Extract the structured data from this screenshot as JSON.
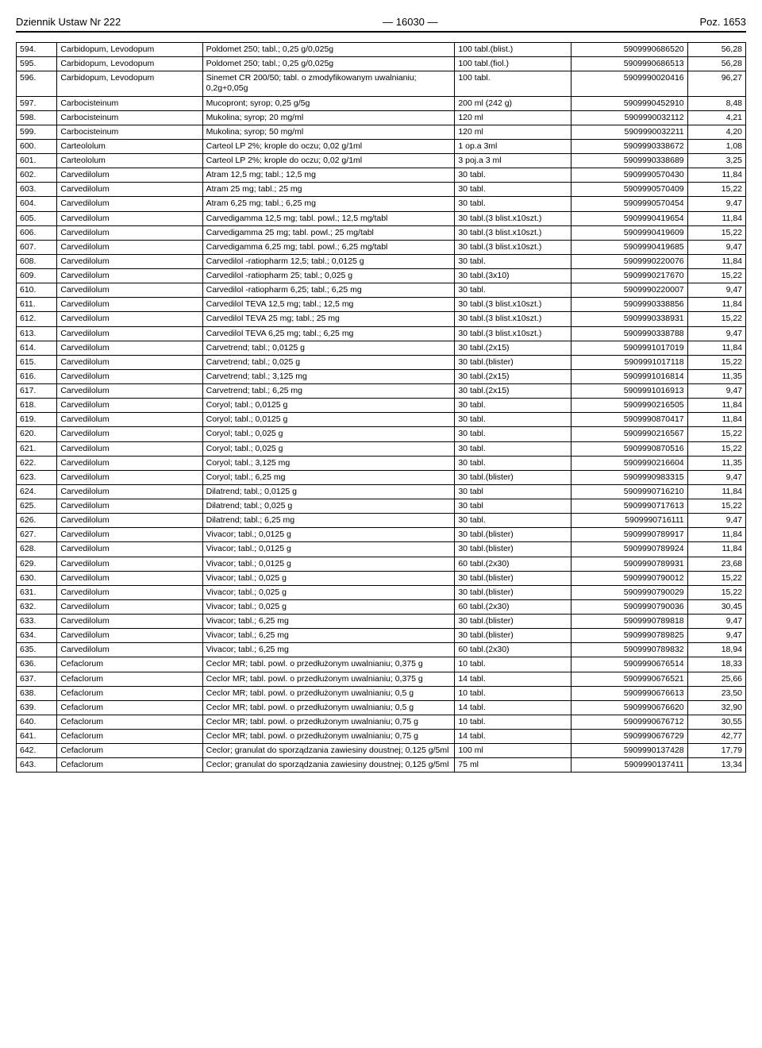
{
  "header": {
    "left": "Dziennik Ustaw Nr 222",
    "center": "— 16030 —",
    "right": "Poz. 1653"
  },
  "rows": [
    {
      "n": "594.",
      "ing": "Carbidopum, Levodopum",
      "prod": "Poldomet 250; tabl.; 0,25 g/0,025g",
      "pack": "100 tabl.(blist.)",
      "ean": "5909990686520",
      "price": "56,28"
    },
    {
      "n": "595.",
      "ing": "Carbidopum, Levodopum",
      "prod": "Poldomet 250; tabl.; 0,25 g/0,025g",
      "pack": "100 tabl.(fiol.)",
      "ean": "5909990686513",
      "price": "56,28"
    },
    {
      "n": "596.",
      "ing": "Carbidopum, Levodopum",
      "prod": "Sinemet CR 200/50; tabl. o zmodyfikowanym uwalnianiu; 0,2g+0,05g",
      "pack": "100 tabl.",
      "ean": "5909990020416",
      "price": "96,27"
    },
    {
      "n": "597.",
      "ing": "Carbocisteinum",
      "prod": "Mucopront; syrop; 0,25 g/5g",
      "pack": "200 ml (242 g)",
      "ean": "5909990452910",
      "price": "8,48"
    },
    {
      "n": "598.",
      "ing": "Carbocisteinum",
      "prod": "Mukolina; syrop; 20 mg/ml",
      "pack": "120 ml",
      "ean": "5909990032112",
      "price": "4,21"
    },
    {
      "n": "599.",
      "ing": "Carbocisteinum",
      "prod": "Mukolina; syrop; 50 mg/ml",
      "pack": "120 ml",
      "ean": "5909990032211",
      "price": "4,20"
    },
    {
      "n": "600.",
      "ing": "Carteololum",
      "prod": "Carteol LP 2%; krople do oczu; 0,02 g/1ml",
      "pack": "1 op.a 3ml",
      "ean": "5909990338672",
      "price": "1,08"
    },
    {
      "n": "601.",
      "ing": "Carteololum",
      "prod": "Carteol LP 2%; krople do oczu; 0,02 g/1ml",
      "pack": "3 poj.a 3 ml",
      "ean": "5909990338689",
      "price": "3,25"
    },
    {
      "n": "602.",
      "ing": "Carvedilolum",
      "prod": "Atram 12,5 mg; tabl.; 12,5 mg",
      "pack": "30 tabl.",
      "ean": "5909990570430",
      "price": "11,84"
    },
    {
      "n": "603.",
      "ing": "Carvedilolum",
      "prod": "Atram 25 mg; tabl.; 25 mg",
      "pack": "30 tabl.",
      "ean": "5909990570409",
      "price": "15,22"
    },
    {
      "n": "604.",
      "ing": "Carvedilolum",
      "prod": "Atram 6,25 mg; tabl.; 6,25 mg",
      "pack": "30 tabl.",
      "ean": "5909990570454",
      "price": "9,47"
    },
    {
      "n": "605.",
      "ing": "Carvedilolum",
      "prod": "Carvedigamma 12,5 mg; tabl. powl.; 12,5 mg/tabl",
      "pack": "30 tabl.(3 blist.x10szt.)",
      "ean": "5909990419654",
      "price": "11,84"
    },
    {
      "n": "606.",
      "ing": "Carvedilolum",
      "prod": "Carvedigamma 25 mg; tabl. powl.; 25 mg/tabl",
      "pack": "30 tabl.(3 blist.x10szt.)",
      "ean": "5909990419609",
      "price": "15,22"
    },
    {
      "n": "607.",
      "ing": "Carvedilolum",
      "prod": "Carvedigamma 6,25 mg; tabl. powl.; 6,25 mg/tabl",
      "pack": "30 tabl.(3 blist.x10szt.)",
      "ean": "5909990419685",
      "price": "9,47"
    },
    {
      "n": "608.",
      "ing": "Carvedilolum",
      "prod": "Carvedilol -ratiopharm 12,5; tabl.; 0,0125 g",
      "pack": "30 tabl.",
      "ean": "5909990220076",
      "price": "11,84"
    },
    {
      "n": "609.",
      "ing": "Carvedilolum",
      "prod": "Carvedilol -ratiopharm 25; tabl.; 0,025 g",
      "pack": "30 tabl.(3x10)",
      "ean": "5909990217670",
      "price": "15,22"
    },
    {
      "n": "610.",
      "ing": "Carvedilolum",
      "prod": "Carvedilol -ratiopharm 6,25; tabl.; 6,25 mg",
      "pack": "30 tabl.",
      "ean": "5909990220007",
      "price": "9,47"
    },
    {
      "n": "611.",
      "ing": "Carvedilolum",
      "prod": "Carvedilol TEVA 12,5 mg; tabl.; 12,5 mg",
      "pack": "30 tabl.(3 blist.x10szt.)",
      "ean": "5909990338856",
      "price": "11,84"
    },
    {
      "n": "612.",
      "ing": "Carvedilolum",
      "prod": "Carvedilol TEVA 25 mg; tabl.; 25 mg",
      "pack": "30 tabl.(3 blist.x10szt.)",
      "ean": "5909990338931",
      "price": "15,22"
    },
    {
      "n": "613.",
      "ing": "Carvedilolum",
      "prod": "Carvedilol TEVA 6,25 mg; tabl.; 6,25 mg",
      "pack": "30 tabl.(3 blist.x10szt.)",
      "ean": "5909990338788",
      "price": "9,47"
    },
    {
      "n": "614.",
      "ing": "Carvedilolum",
      "prod": "Carvetrend; tabl.; 0,0125 g",
      "pack": "30 tabl.(2x15)",
      "ean": "5909991017019",
      "price": "11,84"
    },
    {
      "n": "615.",
      "ing": "Carvedilolum",
      "prod": "Carvetrend; tabl.; 0,025 g",
      "pack": "30 tabl.(blister)",
      "ean": "5909991017118",
      "price": "15,22"
    },
    {
      "n": "616.",
      "ing": "Carvedilolum",
      "prod": "Carvetrend; tabl.; 3,125 mg",
      "pack": "30 tabl.(2x15)",
      "ean": "5909991016814",
      "price": "11,35"
    },
    {
      "n": "617.",
      "ing": "Carvedilolum",
      "prod": "Carvetrend; tabl.; 6,25 mg",
      "pack": "30 tabl.(2x15)",
      "ean": "5909991016913",
      "price": "9,47"
    },
    {
      "n": "618.",
      "ing": "Carvedilolum",
      "prod": "Coryol; tabl.; 0,0125 g",
      "pack": "30 tabl.",
      "ean": "5909990216505",
      "price": "11,84"
    },
    {
      "n": "619.",
      "ing": "Carvedilolum",
      "prod": "Coryol; tabl.; 0,0125 g",
      "pack": "30 tabl.",
      "ean": "5909990870417",
      "price": "11,84"
    },
    {
      "n": "620.",
      "ing": "Carvedilolum",
      "prod": "Coryol; tabl.; 0,025 g",
      "pack": "30 tabl.",
      "ean": "5909990216567",
      "price": "15,22"
    },
    {
      "n": "621.",
      "ing": "Carvedilolum",
      "prod": "Coryol; tabl.; 0,025 g",
      "pack": "30 tabl.",
      "ean": "5909990870516",
      "price": "15,22"
    },
    {
      "n": "622.",
      "ing": "Carvedilolum",
      "prod": "Coryol; tabl.; 3,125 mg",
      "pack": "30 tabl.",
      "ean": "5909990216604",
      "price": "11,35"
    },
    {
      "n": "623.",
      "ing": "Carvedilolum",
      "prod": "Coryol; tabl.; 6,25 mg",
      "pack": "30 tabl.(blister)",
      "ean": "5909990983315",
      "price": "9,47"
    },
    {
      "n": "624.",
      "ing": "Carvedilolum",
      "prod": "Dilatrend; tabl.; 0,0125 g",
      "pack": "30 tabl",
      "ean": "5909990716210",
      "price": "11,84"
    },
    {
      "n": "625.",
      "ing": "Carvedilolum",
      "prod": "Dilatrend; tabl.; 0,025 g",
      "pack": "30 tabl",
      "ean": "5909990717613",
      "price": "15,22"
    },
    {
      "n": "626.",
      "ing": "Carvedilolum",
      "prod": "Dilatrend; tabl.; 6,25 mg",
      "pack": "30 tabl.",
      "ean": "5909990716111",
      "price": "9,47"
    },
    {
      "n": "627.",
      "ing": "Carvedilolum",
      "prod": "Vivacor; tabl.; 0,0125 g",
      "pack": "30 tabl.(blister)",
      "ean": "5909990789917",
      "price": "11,84"
    },
    {
      "n": "628.",
      "ing": "Carvedilolum",
      "prod": "Vivacor; tabl.; 0,0125 g",
      "pack": "30 tabl.(blister)",
      "ean": "5909990789924",
      "price": "11,84"
    },
    {
      "n": "629.",
      "ing": "Carvedilolum",
      "prod": "Vivacor; tabl.; 0,0125 g",
      "pack": "60 tabl.(2x30)",
      "ean": "5909990789931",
      "price": "23,68"
    },
    {
      "n": "630.",
      "ing": "Carvedilolum",
      "prod": "Vivacor; tabl.; 0,025 g",
      "pack": "30 tabl.(blister)",
      "ean": "5909990790012",
      "price": "15,22"
    },
    {
      "n": "631.",
      "ing": "Carvedilolum",
      "prod": "Vivacor; tabl.; 0,025 g",
      "pack": "30 tabl.(blister)",
      "ean": "5909990790029",
      "price": "15,22"
    },
    {
      "n": "632.",
      "ing": "Carvedilolum",
      "prod": "Vivacor; tabl.; 0,025 g",
      "pack": "60 tabl.(2x30)",
      "ean": "5909990790036",
      "price": "30,45"
    },
    {
      "n": "633.",
      "ing": "Carvedilolum",
      "prod": "Vivacor; tabl.; 6,25 mg",
      "pack": "30 tabl.(blister)",
      "ean": "5909990789818",
      "price": "9,47"
    },
    {
      "n": "634.",
      "ing": "Carvedilolum",
      "prod": "Vivacor; tabl.; 6,25 mg",
      "pack": "30 tabl.(blister)",
      "ean": "5909990789825",
      "price": "9,47"
    },
    {
      "n": "635.",
      "ing": "Carvedilolum",
      "prod": "Vivacor; tabl.; 6,25 mg",
      "pack": "60 tabl.(2x30)",
      "ean": "5909990789832",
      "price": "18,94"
    },
    {
      "n": "636.",
      "ing": "Cefaclorum",
      "prod": "Ceclor MR; tabl. powl. o przedłużonym uwalnianiu; 0,375 g",
      "pack": "10 tabl.",
      "ean": "5909990676514",
      "price": "18,33"
    },
    {
      "n": "637.",
      "ing": "Cefaclorum",
      "prod": "Ceclor MR; tabl. powl. o przedłużonym uwalnianiu; 0,375 g",
      "pack": "14 tabl.",
      "ean": "5909990676521",
      "price": "25,66"
    },
    {
      "n": "638.",
      "ing": "Cefaclorum",
      "prod": "Ceclor MR; tabl. powl. o przedłużonym uwalnianiu; 0,5 g",
      "pack": "10 tabl.",
      "ean": "5909990676613",
      "price": "23,50"
    },
    {
      "n": "639.",
      "ing": "Cefaclorum",
      "prod": "Ceclor MR; tabl. powl. o przedłużonym uwalnianiu; 0,5 g",
      "pack": "14 tabl.",
      "ean": "5909990676620",
      "price": "32,90"
    },
    {
      "n": "640.",
      "ing": "Cefaclorum",
      "prod": "Ceclor MR; tabl. powl. o przedłużonym uwalnianiu; 0,75 g",
      "pack": "10 tabl.",
      "ean": "5909990676712",
      "price": "30,55"
    },
    {
      "n": "641.",
      "ing": "Cefaclorum",
      "prod": "Ceclor MR; tabl. powl. o przedłużonym uwalnianiu; 0,75 g",
      "pack": "14 tabl.",
      "ean": "5909990676729",
      "price": "42,77"
    },
    {
      "n": "642.",
      "ing": "Cefaclorum",
      "prod": "Ceclor; granulat do sporządzania zawiesiny doustnej; 0,125 g/5ml",
      "pack": "100 ml",
      "ean": "5909990137428",
      "price": "17,79"
    },
    {
      "n": "643.",
      "ing": "Cefaclorum",
      "prod": "Ceclor; granulat do sporządzania zawiesiny doustnej; 0,125 g/5ml",
      "pack": "75 ml",
      "ean": "5909990137411",
      "price": "13,34"
    }
  ]
}
